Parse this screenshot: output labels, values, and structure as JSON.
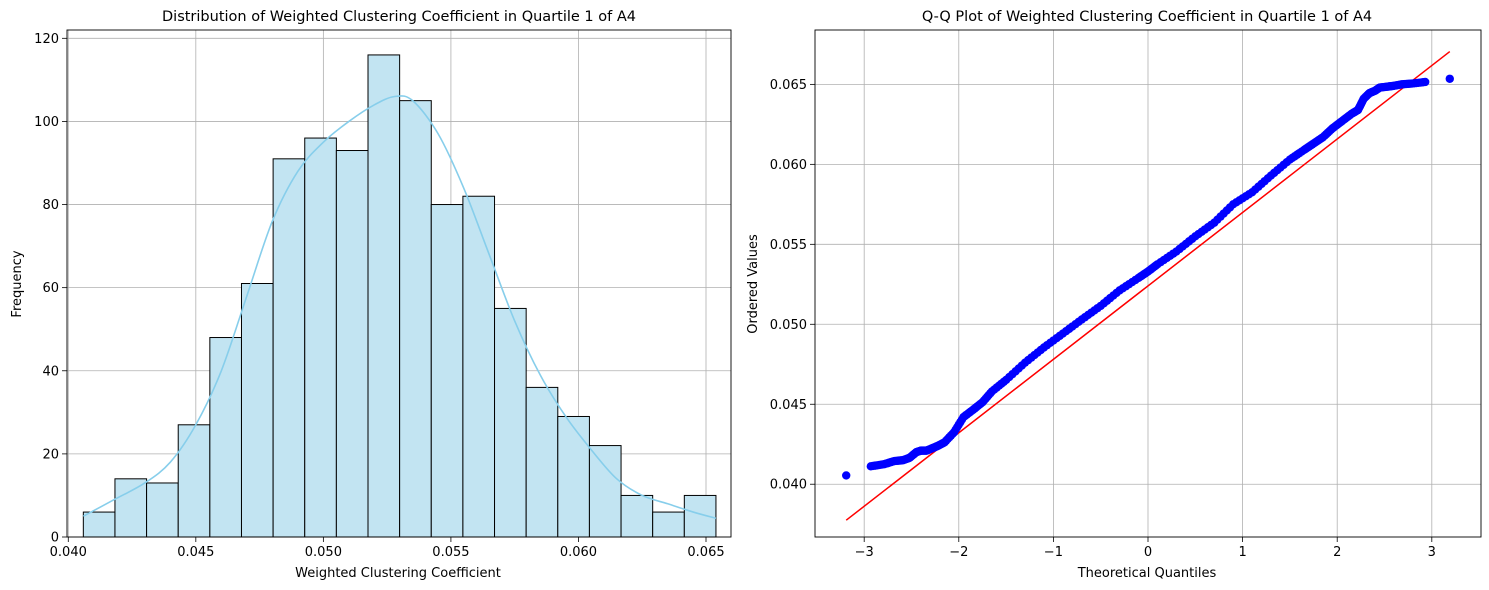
{
  "chart_data": [
    {
      "type": "bar",
      "subtype": "histogram with KDE curve",
      "title": "Distribution of Weighted Clustering Coefficient in Quartile 1 of A4",
      "xlabel": "Weighted Clustering Coefficient",
      "ylabel": "Frequency",
      "xlim": [
        0.03995,
        0.06598
      ],
      "ylim": [
        0,
        122
      ],
      "xticks": [
        0.04,
        0.045,
        0.05,
        0.055,
        0.06,
        0.065
      ],
      "xtick_labels": [
        "0.040",
        "0.045",
        "0.050",
        "0.055",
        "0.060",
        "0.065"
      ],
      "yticks": [
        0,
        20,
        40,
        60,
        80,
        100,
        120
      ],
      "ytick_labels": [
        "0",
        "20",
        "40",
        "60",
        "80",
        "100",
        "120"
      ],
      "bin_edges": [
        0.04059,
        0.04183,
        0.04307,
        0.04431,
        0.04555,
        0.04679,
        0.04803,
        0.04927,
        0.05051,
        0.05175,
        0.05299,
        0.05423,
        0.05547,
        0.05671,
        0.05795,
        0.05919,
        0.06043,
        0.06167,
        0.06291,
        0.06415,
        0.06539
      ],
      "values": [
        6,
        14,
        13,
        27,
        48,
        61,
        91,
        96,
        93,
        116,
        105,
        80,
        82,
        55,
        36,
        29,
        22,
        10,
        6,
        10
      ],
      "kde": {
        "x": [
          0.04059,
          0.0418,
          0.043,
          0.044,
          0.045,
          0.046,
          0.047,
          0.048,
          0.049,
          0.05,
          0.051,
          0.052,
          0.0528,
          0.0535,
          0.0545,
          0.0555,
          0.0565,
          0.0575,
          0.0585,
          0.0595,
          0.0605,
          0.0615,
          0.0625,
          0.0635,
          0.0645,
          0.06539
        ],
        "y": [
          5,
          9,
          13,
          18,
          27,
          40,
          58,
          76,
          88,
          95,
          100,
          104,
          106,
          105,
          97,
          84,
          68,
          52,
          39,
          29,
          21,
          14,
          10,
          8,
          6,
          4.5
        ]
      },
      "bar_color": "#c2e4f2",
      "edge_color": "#000000",
      "kde_color": "#87ceeb",
      "grid": true
    },
    {
      "type": "scatter",
      "subtype": "Q-Q plot",
      "title": "Q-Q Plot of Weighted Clustering Coefficient in Quartile 1 of A4",
      "xlabel": "Theoretical Quantiles",
      "ylabel": "Ordered Values",
      "xlim": [
        -3.52,
        3.52
      ],
      "ylim": [
        0.0367,
        0.0684
      ],
      "xticks": [
        -3,
        -2,
        -1,
        0,
        1,
        2,
        3
      ],
      "xtick_labels": [
        "−3",
        "−2",
        "−1",
        "0",
        "1",
        "2",
        "3"
      ],
      "yticks": [
        0.04,
        0.045,
        0.05,
        0.055,
        0.06,
        0.065
      ],
      "ytick_labels": [
        "0.040",
        "0.045",
        "0.050",
        "0.055",
        "0.060",
        "0.065"
      ],
      "points": {
        "x": [
          -3.19,
          -2.93,
          -2.79,
          -2.68,
          -2.59,
          -2.52,
          -2.45,
          -2.4,
          -2.34,
          -2.28,
          -2.22,
          -2.15,
          -2.05,
          -1.95,
          -1.85,
          -1.75,
          -1.65,
          -1.5,
          -1.3,
          -1.1,
          -0.9,
          -0.7,
          -0.5,
          -0.3,
          -0.1,
          0.0,
          0.1,
          0.3,
          0.5,
          0.7,
          0.9,
          1.1,
          1.3,
          1.5,
          1.65,
          1.75,
          1.85,
          1.95,
          2.05,
          2.15,
          2.22,
          2.28,
          2.34,
          2.4,
          2.45,
          2.52,
          2.59,
          2.68,
          2.79,
          2.93,
          3.19
        ],
        "y": [
          0.04055,
          0.04112,
          0.04125,
          0.04145,
          0.0415,
          0.04165,
          0.042,
          0.0421,
          0.0421,
          0.04225,
          0.0424,
          0.04262,
          0.04325,
          0.0442,
          0.04465,
          0.04512,
          0.0458,
          0.04652,
          0.0476,
          0.04855,
          0.04942,
          0.0503,
          0.05115,
          0.05212,
          0.0529,
          0.0533,
          0.05375,
          0.05455,
          0.0555,
          0.05635,
          0.0575,
          0.05825,
          0.0593,
          0.0603,
          0.0609,
          0.0613,
          0.0617,
          0.06225,
          0.0627,
          0.06315,
          0.0634,
          0.0641,
          0.06445,
          0.0646,
          0.0648,
          0.06485,
          0.0649,
          0.065,
          0.06505,
          0.06515,
          0.06535
        ]
      },
      "fit_line": {
        "x": [
          -3.19,
          3.19
        ],
        "y": [
          0.03775,
          0.06705
        ]
      },
      "point_color": "#0000ff",
      "line_color": "#ff0000",
      "grid": true
    }
  ]
}
